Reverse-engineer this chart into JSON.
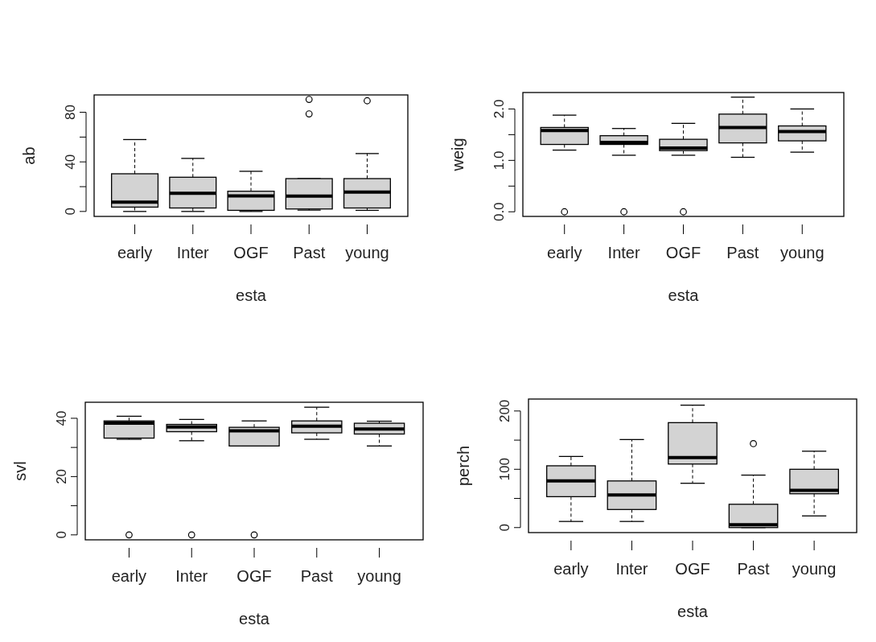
{
  "chart_data": [
    {
      "type": "box",
      "xlabel": "esta",
      "ylabel": "ab",
      "categories": [
        "early",
        "Inter",
        "OGF",
        "Past",
        "young"
      ],
      "color": "#d3d3d3",
      "ylim": [
        -4,
        94
      ],
      "yticks": [
        0,
        {
          "value": 20,
          "label": null
        },
        40,
        {
          "value": 60,
          "label": null
        },
        80
      ],
      "boxes": [
        {
          "low": 0,
          "q1": 3.5,
          "median": 7.6,
          "q3": 30.4,
          "high": 58
        },
        {
          "low": 0,
          "q1": 2.8,
          "median": 14.6,
          "q3": 27.6,
          "high": 42.8
        },
        {
          "low": 0,
          "q1": 0.9,
          "median": 12.6,
          "q3": 16.3,
          "high": 32.4
        },
        {
          "low": 1.1,
          "q1": 2,
          "median": 12.4,
          "q3": 26.5,
          "high": 26.5,
          "outliers": [
            78.7,
            90.4
          ]
        },
        {
          "low": 0.9,
          "q1": 2.8,
          "median": 15.7,
          "q3": 26.5,
          "high": 46.7,
          "outliers": [
            89.3
          ]
        }
      ]
    },
    {
      "type": "box",
      "xlabel": "esta",
      "ylabel": "weig",
      "categories": [
        "early",
        "Inter",
        "OGF",
        "Past",
        "young"
      ],
      "color": "#d3d3d3",
      "ylim": [
        -0.09,
        2.32
      ],
      "yticks": [
        {
          "value": 0,
          "label": "0.0"
        },
        {
          "value": 0.5,
          "label": null
        },
        {
          "value": 1,
          "label": "1.0"
        },
        {
          "value": 1.5,
          "label": null
        },
        {
          "value": 2,
          "label": "2.0"
        }
      ],
      "boxes": [
        {
          "low": 1.2,
          "q1": 1.31,
          "median": 1.58,
          "q3": 1.64,
          "high": 1.88,
          "outliers": [
            0
          ]
        },
        {
          "low": 1.1,
          "q1": 1.31,
          "median": 1.35,
          "q3": 1.48,
          "high": 1.62,
          "outliers": [
            0
          ]
        },
        {
          "low": 1.1,
          "q1": 1.19,
          "median": 1.24,
          "q3": 1.41,
          "high": 1.72,
          "outliers": [
            0
          ]
        },
        {
          "low": 1.06,
          "q1": 1.34,
          "median": 1.64,
          "q3": 1.9,
          "high": 2.23
        },
        {
          "low": 1.16,
          "q1": 1.38,
          "median": 1.56,
          "q3": 1.67,
          "high": 2.0
        }
      ]
    },
    {
      "type": "box",
      "xlabel": "esta",
      "ylabel": "svl",
      "categories": [
        "early",
        "Inter",
        "OGF",
        "Past",
        "young"
      ],
      "color": "#d3d3d3",
      "ylim": [
        -1.7,
        45.5
      ],
      "yticks": [
        0,
        {
          "value": 10,
          "label": null
        },
        20,
        {
          "value": 30,
          "label": null
        },
        40
      ],
      "boxes": [
        {
          "low": 32.8,
          "q1": 33.2,
          "median": 38.3,
          "q3": 39.1,
          "high": 40.7,
          "outliers": [
            0
          ]
        },
        {
          "low": 32.3,
          "q1": 35.4,
          "median": 37.0,
          "q3": 37.9,
          "high": 39.6,
          "outliers": [
            0
          ]
        },
        {
          "low": 30.5,
          "q1": 30.5,
          "median": 35.7,
          "q3": 36.9,
          "high": 39.1,
          "outliers": [
            0
          ]
        },
        {
          "low": 32.8,
          "q1": 35.0,
          "median": 37.3,
          "q3": 39.1,
          "high": 43.8
        },
        {
          "low": 30.5,
          "q1": 34.6,
          "median": 36.3,
          "q3": 38.3,
          "high": 39.0
        }
      ]
    },
    {
      "type": "box",
      "xlabel": "esta",
      "ylabel": "perch",
      "categories": [
        "early",
        "Inter",
        "OGF",
        "Past",
        "young"
      ],
      "color": "#d3d3d3",
      "ylim": [
        -8.6,
        220.5
      ],
      "yticks": [
        0,
        {
          "value": 50,
          "label": null
        },
        100,
        {
          "value": 150,
          "label": null
        },
        200
      ],
      "boxes": [
        {
          "low": 10.5,
          "q1": 53,
          "median": 80,
          "q3": 106,
          "high": 122
        },
        {
          "low": 10.5,
          "q1": 31,
          "median": 56,
          "q3": 80,
          "high": 151
        },
        {
          "low": 76,
          "q1": 109,
          "median": 120,
          "q3": 180,
          "high": 210
        },
        {
          "low": 0,
          "q1": 0,
          "median": 5,
          "q3": 40,
          "high": 90,
          "outliers": [
            144
          ]
        },
        {
          "low": 20,
          "q1": 58,
          "median": 64,
          "q3": 100,
          "high": 131
        }
      ]
    }
  ]
}
